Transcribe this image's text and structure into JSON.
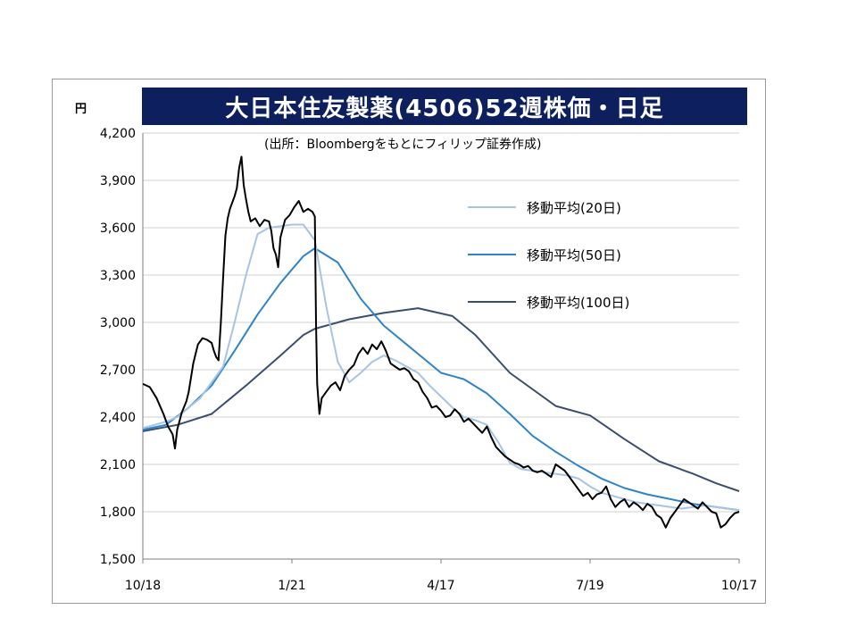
{
  "title": "大日本住友製薬(4506)52週株価・日足",
  "unit": "円",
  "source_note": "(出所：Bloombergをもとにフィリップ証券作成)",
  "chart_data": {
    "type": "line",
    "title": "大日本住友製薬(4506)52週株価・日足",
    "ylabel": "円",
    "ylim": [
      1500,
      4200
    ],
    "y_ticks": [
      "1,500",
      "1,800",
      "2,100",
      "2,400",
      "2,700",
      "3,000",
      "3,300",
      "3,600",
      "3,900",
      "4,200"
    ],
    "y_tick_values": [
      1500,
      1800,
      2100,
      2400,
      2700,
      3000,
      3300,
      3600,
      3900,
      4200
    ],
    "x_ticks": [
      "10/18",
      "1/21",
      "4/17",
      "7/19",
      "10/17"
    ],
    "x_tick_index": [
      0,
      65,
      130,
      195,
      260
    ],
    "grid": "horizontal",
    "legend_position": "top-right",
    "series": [
      {
        "name": "price",
        "color": "#000000",
        "points": [
          [
            0,
            2610
          ],
          [
            3,
            2590
          ],
          [
            6,
            2520
          ],
          [
            9,
            2420
          ],
          [
            11,
            2340
          ],
          [
            13,
            2290
          ],
          [
            14,
            2200
          ],
          [
            15,
            2320
          ],
          [
            17,
            2430
          ],
          [
            19,
            2500
          ],
          [
            20,
            2560
          ],
          [
            22,
            2740
          ],
          [
            24,
            2860
          ],
          [
            26,
            2900
          ],
          [
            28,
            2890
          ],
          [
            30,
            2870
          ],
          [
            31,
            2820
          ],
          [
            32,
            2780
          ],
          [
            33,
            2760
          ],
          [
            34,
            3000
          ],
          [
            35,
            3280
          ],
          [
            36,
            3550
          ],
          [
            37,
            3660
          ],
          [
            38,
            3720
          ],
          [
            40,
            3800
          ],
          [
            41,
            3850
          ],
          [
            42,
            3980
          ],
          [
            43,
            4050
          ],
          [
            44,
            3870
          ],
          [
            45,
            3780
          ],
          [
            46,
            3700
          ],
          [
            47,
            3640
          ],
          [
            49,
            3660
          ],
          [
            51,
            3610
          ],
          [
            53,
            3650
          ],
          [
            55,
            3640
          ],
          [
            56,
            3580
          ],
          [
            57,
            3470
          ],
          [
            58,
            3430
          ],
          [
            59,
            3350
          ],
          [
            60,
            3540
          ],
          [
            62,
            3650
          ],
          [
            64,
            3680
          ],
          [
            66,
            3730
          ],
          [
            68,
            3770
          ],
          [
            70,
            3700
          ],
          [
            72,
            3720
          ],
          [
            74,
            3700
          ],
          [
            75,
            3670
          ],
          [
            75.5,
            3000
          ],
          [
            76,
            2610
          ],
          [
            77,
            2420
          ],
          [
            78,
            2520
          ],
          [
            80,
            2560
          ],
          [
            82,
            2600
          ],
          [
            84,
            2620
          ],
          [
            86,
            2570
          ],
          [
            88,
            2660
          ],
          [
            90,
            2700
          ],
          [
            92,
            2730
          ],
          [
            94,
            2800
          ],
          [
            96,
            2840
          ],
          [
            98,
            2800
          ],
          [
            100,
            2860
          ],
          [
            102,
            2830
          ],
          [
            104,
            2880
          ],
          [
            106,
            2820
          ],
          [
            108,
            2740
          ],
          [
            110,
            2720
          ],
          [
            112,
            2700
          ],
          [
            114,
            2710
          ],
          [
            116,
            2690
          ],
          [
            118,
            2640
          ],
          [
            120,
            2620
          ],
          [
            122,
            2560
          ],
          [
            124,
            2520
          ],
          [
            126,
            2460
          ],
          [
            128,
            2470
          ],
          [
            130,
            2440
          ],
          [
            132,
            2400
          ],
          [
            134,
            2410
          ],
          [
            136,
            2450
          ],
          [
            138,
            2420
          ],
          [
            140,
            2370
          ],
          [
            142,
            2390
          ],
          [
            144,
            2360
          ],
          [
            146,
            2330
          ],
          [
            148,
            2300
          ],
          [
            150,
            2340
          ],
          [
            152,
            2270
          ],
          [
            154,
            2210
          ],
          [
            156,
            2180
          ],
          [
            158,
            2150
          ],
          [
            160,
            2130
          ],
          [
            162,
            2110
          ],
          [
            164,
            2100
          ],
          [
            166,
            2080
          ],
          [
            168,
            2090
          ],
          [
            170,
            2060
          ],
          [
            172,
            2050
          ],
          [
            174,
            2060
          ],
          [
            176,
            2040
          ],
          [
            178,
            2020
          ],
          [
            180,
            2100
          ],
          [
            182,
            2080
          ],
          [
            184,
            2060
          ],
          [
            186,
            2020
          ],
          [
            188,
            1980
          ],
          [
            190,
            1940
          ],
          [
            192,
            1900
          ],
          [
            194,
            1920
          ],
          [
            196,
            1880
          ],
          [
            198,
            1910
          ],
          [
            200,
            1920
          ],
          [
            202,
            1960
          ],
          [
            204,
            1880
          ],
          [
            206,
            1830
          ],
          [
            208,
            1860
          ],
          [
            210,
            1880
          ],
          [
            212,
            1830
          ],
          [
            214,
            1860
          ],
          [
            216,
            1840
          ],
          [
            218,
            1810
          ],
          [
            220,
            1850
          ],
          [
            222,
            1830
          ],
          [
            224,
            1780
          ],
          [
            226,
            1760
          ],
          [
            228,
            1700
          ],
          [
            230,
            1760
          ],
          [
            232,
            1800
          ],
          [
            234,
            1840
          ],
          [
            236,
            1880
          ],
          [
            238,
            1860
          ],
          [
            240,
            1840
          ],
          [
            242,
            1820
          ],
          [
            244,
            1860
          ],
          [
            246,
            1830
          ],
          [
            248,
            1800
          ],
          [
            250,
            1790
          ],
          [
            252,
            1700
          ],
          [
            254,
            1720
          ],
          [
            256,
            1760
          ],
          [
            258,
            1790
          ],
          [
            260,
            1800
          ]
        ]
      },
      {
        "name": "移動平均(20日)",
        "color": "#a8c4e4",
        "points": [
          [
            0,
            2330
          ],
          [
            10,
            2370
          ],
          [
            15,
            2400
          ],
          [
            25,
            2520
          ],
          [
            30,
            2620
          ],
          [
            35,
            2720
          ],
          [
            40,
            3000
          ],
          [
            45,
            3300
          ],
          [
            50,
            3560
          ],
          [
            55,
            3600
          ],
          [
            60,
            3610
          ],
          [
            65,
            3620
          ],
          [
            70,
            3620
          ],
          [
            75,
            3520
          ],
          [
            80,
            3100
          ],
          [
            85,
            2750
          ],
          [
            90,
            2620
          ],
          [
            95,
            2680
          ],
          [
            100,
            2750
          ],
          [
            105,
            2790
          ],
          [
            110,
            2760
          ],
          [
            115,
            2720
          ],
          [
            120,
            2680
          ],
          [
            125,
            2600
          ],
          [
            130,
            2530
          ],
          [
            135,
            2460
          ],
          [
            140,
            2400
          ],
          [
            145,
            2380
          ],
          [
            150,
            2350
          ],
          [
            155,
            2240
          ],
          [
            160,
            2110
          ],
          [
            165,
            2070
          ],
          [
            170,
            2060
          ],
          [
            175,
            2050
          ],
          [
            180,
            2040
          ],
          [
            185,
            2030
          ],
          [
            190,
            2010
          ],
          [
            195,
            1960
          ],
          [
            200,
            1920
          ],
          [
            205,
            1900
          ],
          [
            210,
            1880
          ],
          [
            215,
            1860
          ],
          [
            220,
            1850
          ],
          [
            225,
            1840
          ],
          [
            230,
            1830
          ],
          [
            235,
            1820
          ],
          [
            240,
            1830
          ],
          [
            245,
            1840
          ],
          [
            250,
            1830
          ],
          [
            255,
            1820
          ],
          [
            260,
            1810
          ]
        ]
      },
      {
        "name": "移動平均(50日)",
        "color": "#2e84c8",
        "points": [
          [
            0,
            2320
          ],
          [
            10,
            2350
          ],
          [
            20,
            2460
          ],
          [
            30,
            2600
          ],
          [
            40,
            2820
          ],
          [
            50,
            3050
          ],
          [
            60,
            3250
          ],
          [
            70,
            3420
          ],
          [
            75,
            3470
          ],
          [
            85,
            3380
          ],
          [
            95,
            3150
          ],
          [
            105,
            2980
          ],
          [
            115,
            2860
          ],
          [
            125,
            2740
          ],
          [
            130,
            2680
          ],
          [
            140,
            2640
          ],
          [
            150,
            2550
          ],
          [
            160,
            2420
          ],
          [
            170,
            2280
          ],
          [
            180,
            2180
          ],
          [
            190,
            2090
          ],
          [
            200,
            2010
          ],
          [
            210,
            1950
          ],
          [
            220,
            1910
          ],
          [
            230,
            1880
          ],
          [
            240,
            1850
          ],
          [
            250,
            1830
          ],
          [
            260,
            1810
          ]
        ]
      },
      {
        "name": "移動平均(100日)",
        "color": "#3c4e6e",
        "points": [
          [
            0,
            2310
          ],
          [
            15,
            2350
          ],
          [
            30,
            2420
          ],
          [
            45,
            2600
          ],
          [
            60,
            2790
          ],
          [
            70,
            2920
          ],
          [
            75,
            2960
          ],
          [
            90,
            3020
          ],
          [
            105,
            3060
          ],
          [
            115,
            3080
          ],
          [
            120,
            3090
          ],
          [
            135,
            3040
          ],
          [
            145,
            2920
          ],
          [
            160,
            2680
          ],
          [
            180,
            2470
          ],
          [
            195,
            2410
          ],
          [
            210,
            2260
          ],
          [
            225,
            2120
          ],
          [
            240,
            2040
          ],
          [
            250,
            1980
          ],
          [
            260,
            1930
          ]
        ]
      }
    ]
  },
  "legend": [
    {
      "label": "移動平均(20日)",
      "color": "#a8c4e4"
    },
    {
      "label": "移動平均(50日)",
      "color": "#2e84c8"
    },
    {
      "label": "移動平均(100日)",
      "color": "#3c4e6e"
    }
  ]
}
